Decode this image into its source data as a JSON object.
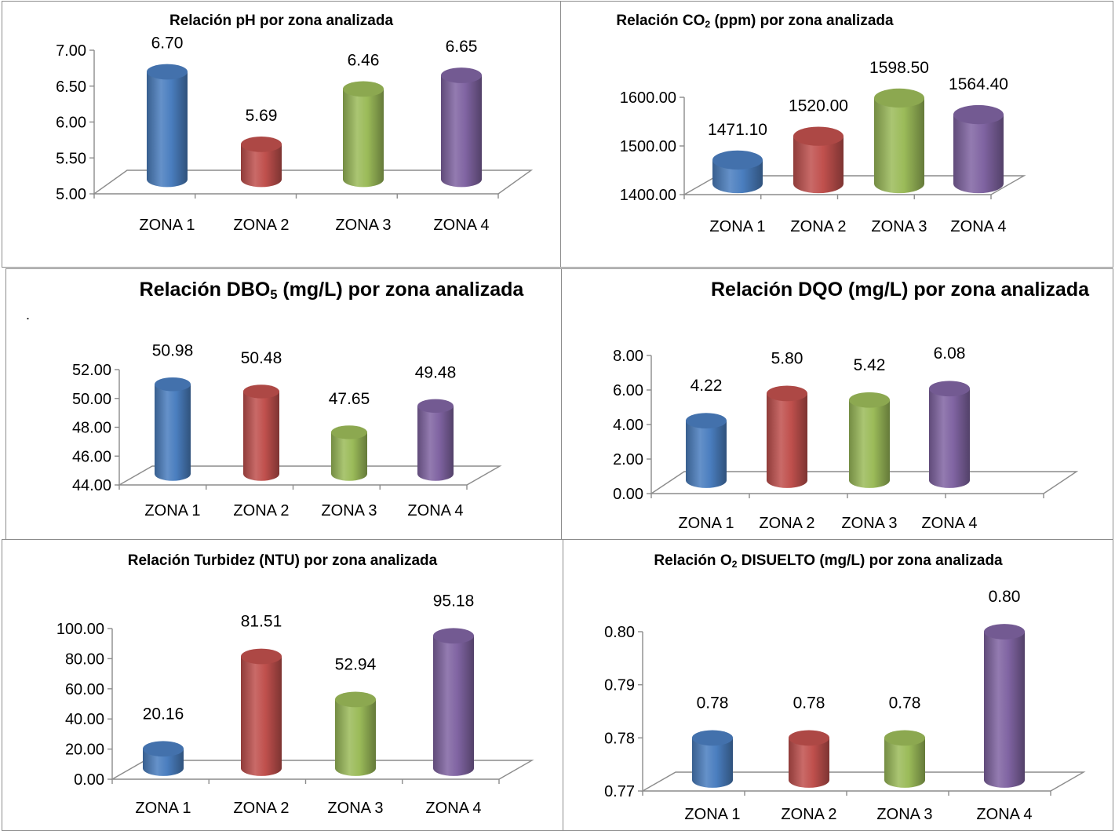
{
  "charts": [
    {
      "chart_data": {
        "type": "bar",
        "title": "Relación pH por zona analizada",
        "categories": [
          "ZONA 1",
          "ZONA 2",
          "ZONA 3",
          "ZONA 4"
        ],
        "values": [
          6.7,
          5.69,
          6.46,
          6.65
        ],
        "value_labels": [
          "6.70",
          "5.69",
          "6.46",
          "6.65"
        ],
        "yticks": [
          "5.00",
          "5.50",
          "6.00",
          "6.50",
          "7.00"
        ],
        "ylim": [
          5,
          7
        ],
        "grid": false,
        "legend": "none"
      },
      "title_parts": {
        "pre": "Relación pH por zona analizada",
        "sub": "",
        "post": ""
      }
    },
    {
      "chart_data": {
        "type": "bar",
        "title": "Relación CO2 (ppm) por zona analizada",
        "categories": [
          "ZONA 1",
          "ZONA 2",
          "ZONA 3",
          "ZONA 4"
        ],
        "values": [
          1471.1,
          1520.0,
          1598.5,
          1564.4
        ],
        "value_labels": [
          "1471.10",
          "1520.00",
          "1598.50",
          "1564.40"
        ],
        "yticks": [
          "1400.00",
          "1500.00",
          "1600.00"
        ],
        "ylim": [
          1400,
          1600
        ],
        "grid": false,
        "legend": "none"
      },
      "title_parts": {
        "pre": "Relación CO",
        "sub": "2",
        "post": " (ppm) por zona analizada"
      }
    },
    {
      "chart_data": {
        "type": "bar",
        "title": "Relación DBO5 (mg/L) por zona analizada",
        "categories": [
          "ZONA 1",
          "ZONA 2",
          "ZONA 3",
          "ZONA 4"
        ],
        "values": [
          50.98,
          50.48,
          47.65,
          49.48
        ],
        "value_labels": [
          "50.98",
          "50.48",
          "47.65",
          "49.48"
        ],
        "yticks": [
          "44.00",
          "46.00",
          "48.00",
          "50.00",
          "52.00"
        ],
        "ylim": [
          44,
          52
        ],
        "grid": false,
        "legend": "none"
      },
      "title_parts": {
        "pre": "Relación DBO",
        "sub": "5",
        "post": " (mg/L) por zona analizada"
      },
      "stray_mark": "."
    },
    {
      "chart_data": {
        "type": "bar",
        "title": "Relación DQO (mg/L) por zona analizada",
        "categories": [
          "ZONA 1",
          "ZONA 2",
          "ZONA 3",
          "ZONA 4"
        ],
        "values": [
          4.22,
          5.8,
          5.42,
          6.08
        ],
        "value_labels": [
          "4.22",
          "5.80",
          "5.42",
          "6.08"
        ],
        "yticks": [
          "0.00",
          "2.00",
          "4.00",
          "6.00",
          "8.00"
        ],
        "ylim": [
          0,
          8
        ],
        "grid": false,
        "legend": "none"
      },
      "title_parts": {
        "pre": "Relación DQO (mg/L) por zona analizada",
        "sub": "",
        "post": ""
      }
    },
    {
      "chart_data": {
        "type": "bar",
        "title": "Relación Turbidez (NTU) por zona analizada",
        "categories": [
          "ZONA 1",
          "ZONA 2",
          "ZONA 3",
          "ZONA 4"
        ],
        "values": [
          20.16,
          81.51,
          52.94,
          95.18
        ],
        "value_labels": [
          "20.16",
          "81.51",
          "52.94",
          "95.18"
        ],
        "yticks": [
          "0.00",
          "20.00",
          "40.00",
          "60.00",
          "80.00",
          "100.00"
        ],
        "ylim": [
          0,
          100
        ],
        "grid": false,
        "legend": "none"
      },
      "title_parts": {
        "pre": "Relación Turbidez (NTU) por zona analizada",
        "sub": "",
        "post": ""
      }
    },
    {
      "chart_data": {
        "type": "bar",
        "title": "Relación O2 DISUELTO (mg/L) por zona analizada",
        "categories": [
          "ZONA 1",
          "ZONA 2",
          "ZONA 3",
          "ZONA 4"
        ],
        "values": [
          0.78,
          0.78,
          0.78,
          0.8
        ],
        "value_labels": [
          "0.78",
          "0.78",
          "0.78",
          "0.80"
        ],
        "yticks": [
          "0.77",
          "0.78",
          "0.79",
          "0.80"
        ],
        "ylim": [
          0.77,
          0.8
        ],
        "grid": false,
        "legend": "none"
      },
      "title_parts": {
        "pre": "Relación O",
        "sub": "2",
        "post": " DISUELTO (mg/L) por zona analizada"
      }
    }
  ],
  "colors": [
    "#4a7ebf",
    "#c0504d",
    "#9bbb59",
    "#8064a2"
  ]
}
